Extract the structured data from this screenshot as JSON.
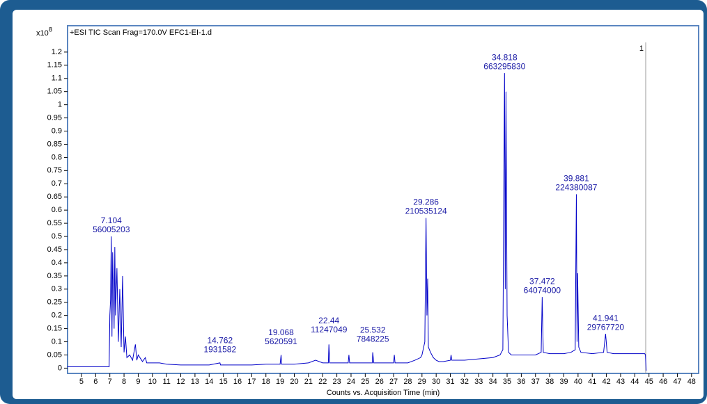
{
  "chart_data": {
    "type": "line",
    "title": "+ESI TIC Scan Frag=170.0V EFC1-EI-1.d",
    "x_label": "Counts vs. Acquisition Time (min)",
    "y_multiplier": "x10",
    "y_exponent": 8,
    "color": "#0000c8",
    "xlim": [
      4.02,
      48.5
    ],
    "ylim": [
      -0.02,
      1.3
    ],
    "xticks": [
      5,
      6,
      7,
      8,
      9,
      10,
      11,
      12,
      13,
      14,
      15,
      16,
      17,
      18,
      19,
      20,
      21,
      22,
      23,
      24,
      25,
      26,
      27,
      28,
      29,
      30,
      31,
      32,
      33,
      34,
      35,
      36,
      37,
      38,
      39,
      40,
      41,
      42,
      43,
      44,
      45,
      46,
      47,
      48
    ],
    "yticks": [
      0,
      0.05,
      0.1,
      0.15,
      0.2,
      0.25,
      0.3,
      0.35,
      0.4,
      0.45,
      0.5,
      0.55,
      0.6,
      0.65,
      0.7,
      0.75,
      0.8,
      0.85,
      0.9,
      0.95,
      1,
      1.05,
      1.1,
      1.15,
      1.2
    ],
    "x": [
      4.0,
      6.95,
      7.0,
      7.05,
      7.1,
      7.15,
      7.2,
      7.3,
      7.35,
      7.4,
      7.5,
      7.6,
      7.7,
      7.8,
      7.9,
      8.0,
      8.1,
      8.2,
      8.4,
      8.6,
      8.8,
      8.9,
      9.0,
      9.3,
      9.5,
      9.6,
      10,
      10.5,
      11,
      12,
      13,
      14,
      14.76,
      14.8,
      15,
      16,
      17,
      18,
      19,
      19.07,
      19.1,
      20,
      21,
      21.5,
      22,
      22.4,
      22.44,
      22.5,
      23,
      23.8,
      23.85,
      23.9,
      25,
      25.5,
      25.53,
      25.6,
      26,
      27,
      27.05,
      27.1,
      28,
      28.5,
      28.9,
      29.0,
      29.2,
      29.286,
      29.35,
      29.4,
      29.45,
      29.6,
      29.8,
      30,
      30.2,
      30.5,
      31,
      31.05,
      31.1,
      32,
      33,
      34,
      34.5,
      34.7,
      34.818,
      34.87,
      34.92,
      35.0,
      35.1,
      35.3,
      36,
      37,
      37.4,
      37.472,
      37.55,
      38,
      39,
      39.5,
      39.8,
      39.881,
      39.93,
      39.97,
      40.05,
      40.2,
      41,
      41.8,
      41.941,
      42.05,
      42.5,
      43,
      44,
      44.7,
      44.75,
      44.8
    ],
    "values": [
      0.005,
      0.005,
      0.2,
      0.26,
      0.5,
      0.12,
      0.44,
      0.15,
      0.46,
      0.2,
      0.38,
      0.1,
      0.3,
      0.08,
      0.35,
      0.06,
      0.12,
      0.04,
      0.05,
      0.03,
      0.09,
      0.03,
      0.05,
      0.025,
      0.04,
      0.02,
      0.02,
      0.02,
      0.015,
      0.012,
      0.012,
      0.012,
      0.02,
      0.012,
      0.012,
      0.012,
      0.012,
      0.015,
      0.015,
      0.05,
      0.015,
      0.015,
      0.02,
      0.03,
      0.02,
      0.02,
      0.09,
      0.02,
      0.02,
      0.02,
      0.05,
      0.02,
      0.02,
      0.02,
      0.06,
      0.02,
      0.02,
      0.02,
      0.05,
      0.02,
      0.02,
      0.03,
      0.04,
      0.05,
      0.1,
      0.57,
      0.2,
      0.34,
      0.08,
      0.06,
      0.04,
      0.03,
      0.025,
      0.025,
      0.03,
      0.05,
      0.03,
      0.03,
      0.035,
      0.04,
      0.05,
      0.07,
      1.12,
      0.3,
      1.05,
      0.2,
      0.06,
      0.05,
      0.05,
      0.05,
      0.06,
      0.27,
      0.06,
      0.055,
      0.055,
      0.06,
      0.07,
      0.66,
      0.1,
      0.36,
      0.08,
      0.06,
      0.055,
      0.06,
      0.13,
      0.06,
      0.055,
      0.055,
      0.055,
      0.055,
      0.05,
      -0.01
    ],
    "peaks": [
      {
        "time": 7.104,
        "area": 56005203,
        "height": 0.5
      },
      {
        "time": 14.762,
        "area": 1931582,
        "height": 0.045
      },
      {
        "time": 19.068,
        "area": 5620591,
        "height": 0.075
      },
      {
        "time": 22.44,
        "area": 11247049,
        "height": 0.12
      },
      {
        "time": 25.532,
        "area": 7848225,
        "height": 0.085
      },
      {
        "time": 29.286,
        "area": 210535124,
        "height": 0.57
      },
      {
        "time": 34.818,
        "area": 663295830,
        "height": 1.12
      },
      {
        "time": 37.472,
        "area": 64074000,
        "height": 0.27
      },
      {
        "time": 39.881,
        "area": 224380087,
        "height": 0.66
      },
      {
        "time": 41.941,
        "area": 29767720,
        "height": 0.13
      }
    ],
    "cursor_x": 44.77,
    "cursor_label": 1
  }
}
